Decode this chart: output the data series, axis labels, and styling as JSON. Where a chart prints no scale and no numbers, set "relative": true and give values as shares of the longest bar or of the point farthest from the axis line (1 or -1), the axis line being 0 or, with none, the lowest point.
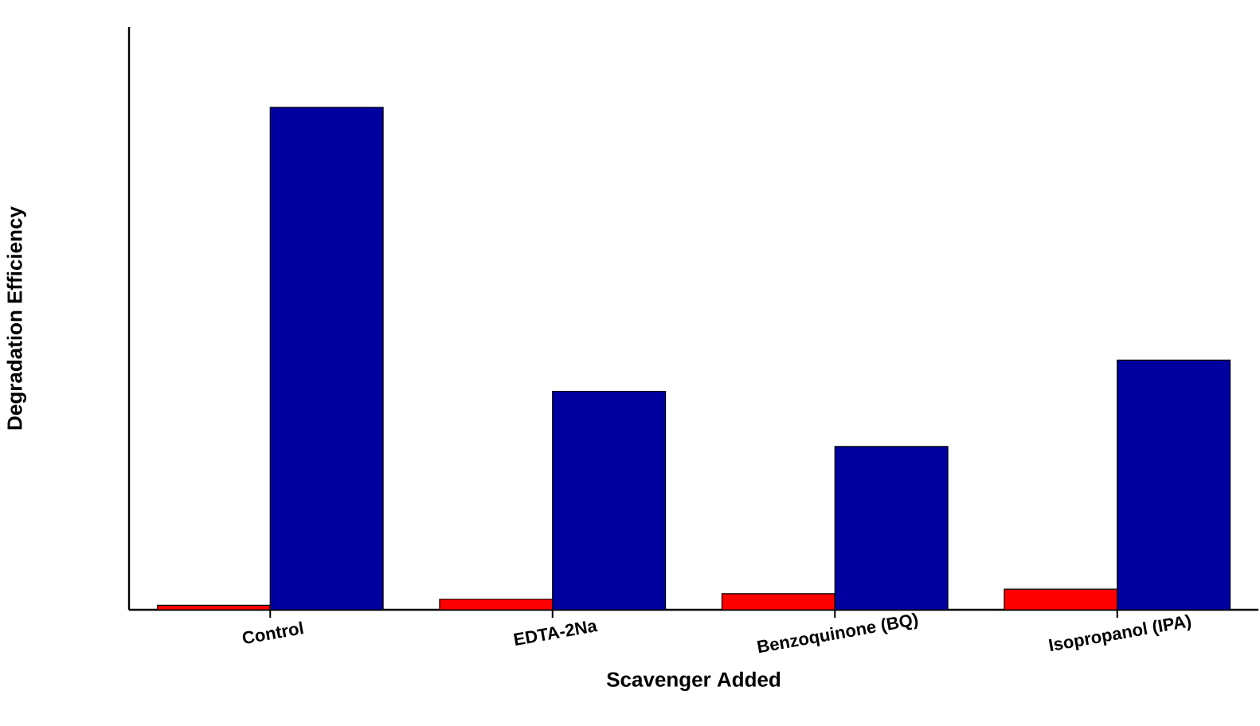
{
  "chart_data": {
    "type": "bar",
    "relative": true,
    "xlabel": "Scavenger Added",
    "ylabel": "Degradation Efficiency",
    "categories": [
      "Control",
      "EDTA-2Na",
      "Benzoquinone (BQ)",
      "Isopropanol (IPA)"
    ],
    "series": [
      {
        "color": "#ff0000",
        "values": [
          0.009,
          0.021,
          0.032,
          0.041
        ]
      },
      {
        "color": "#0000a0",
        "values": [
          1,
          0.435,
          0.325,
          0.497
        ]
      }
    ]
  }
}
